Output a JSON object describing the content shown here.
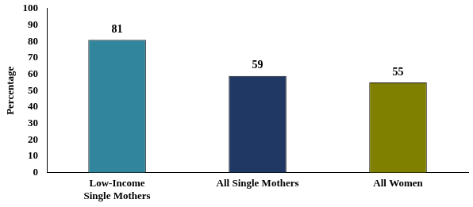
{
  "chart_data": {
    "type": "bar",
    "ylabel": "Percentage",
    "categories": [
      "Low-Income Single Mothers",
      "All Single Mothers",
      "All Women"
    ],
    "values": [
      81,
      59,
      55
    ],
    "colors": [
      "#31859c",
      "#1f3864",
      "#7f7f00"
    ],
    "ylim": [
      0,
      100
    ],
    "yticks": [
      0,
      10,
      20,
      30,
      40,
      50,
      60,
      70,
      80,
      90,
      100
    ],
    "grid": false,
    "data_labels": true
  }
}
